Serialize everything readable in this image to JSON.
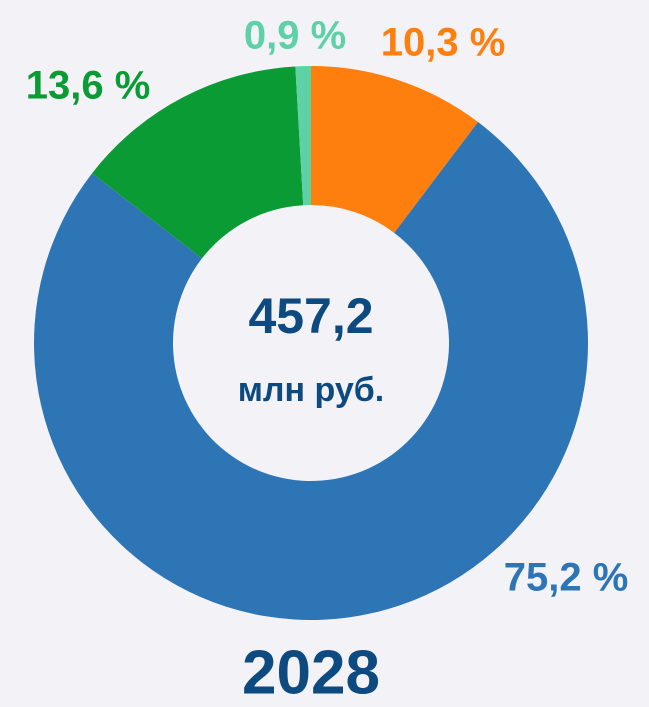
{
  "chart_data": {
    "type": "pie",
    "donut": true,
    "title": "2028",
    "center_text": "457,2",
    "center_subtext": "млн руб.",
    "categories": [
      null,
      null,
      null,
      null
    ],
    "values": [
      10.3,
      75.2,
      13.6,
      0.9
    ],
    "value_labels": [
      "10,3 %",
      "75,2 %",
      "13,6 %",
      "0,9 %"
    ],
    "colors": [
      "#ff7f0e",
      "#2e75b6",
      "#0a9b35",
      "#5fd1a6"
    ]
  }
}
